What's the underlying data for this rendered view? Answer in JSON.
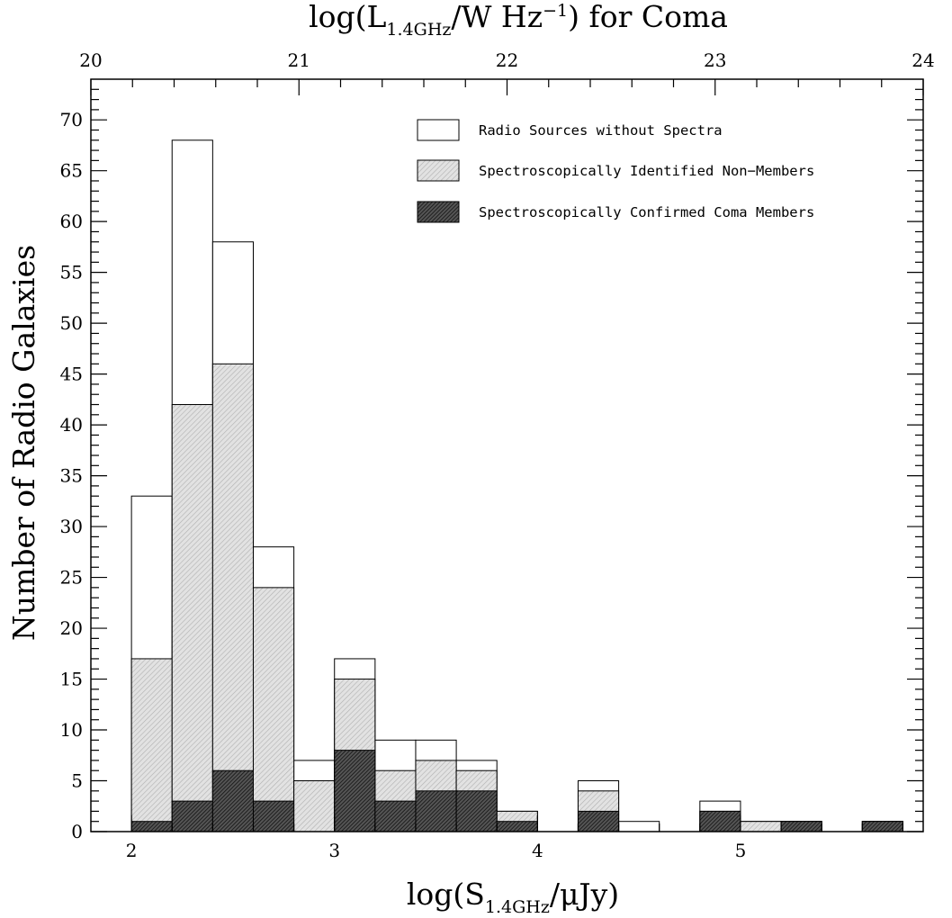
{
  "chart_data": {
    "type": "bar",
    "histogram": "stacked-step",
    "xlabel": {
      "prefix": "log(S",
      "sub": "1.4GHz",
      "suffix": "/μJy)"
    },
    "ylabel": "Number of Radio Galaxies",
    "top_xlabel": {
      "prefix": "log(L",
      "sub": "1.4GHz",
      "mid": "/W Hz",
      "sup": "−1",
      "suffix": ") for Coma"
    },
    "xlim": [
      1.8,
      5.9
    ],
    "ylim": [
      0,
      74
    ],
    "top_xlim": [
      20,
      24
    ],
    "x_ticks": [
      2,
      3,
      4,
      5
    ],
    "y_ticks": [
      0,
      5,
      10,
      15,
      20,
      25,
      30,
      35,
      40,
      45,
      50,
      55,
      60,
      65,
      70
    ],
    "top_x_ticks": [
      20,
      21,
      22,
      23,
      24
    ],
    "bin_edges": [
      2.0,
      2.2,
      2.4,
      2.6,
      2.8,
      3.0,
      3.2,
      3.4,
      3.6,
      3.8,
      4.0,
      4.2,
      4.4,
      4.6,
      4.8,
      5.0,
      5.2,
      5.4,
      5.6,
      5.8
    ],
    "legend_position": "top-right",
    "series": [
      {
        "name": "Radio Sources without Spectra",
        "fill": "white",
        "values": [
          33,
          68,
          58,
          28,
          7,
          17,
          9,
          9,
          7,
          2,
          0,
          5,
          1,
          0,
          3,
          1,
          1,
          0,
          1
        ]
      },
      {
        "name": "Spectroscopically Identified Non−Members",
        "fill": "light-hatch",
        "values": [
          17,
          42,
          46,
          24,
          5,
          15,
          6,
          7,
          6,
          2,
          0,
          4,
          0,
          0,
          2,
          1,
          1,
          0,
          1
        ]
      },
      {
        "name": "Spectroscopically Confirmed Coma Members",
        "fill": "dark-hatch",
        "values": [
          1,
          3,
          6,
          3,
          0,
          8,
          3,
          4,
          4,
          1,
          0,
          2,
          0,
          0,
          2,
          0,
          1,
          0,
          1
        ]
      }
    ]
  }
}
